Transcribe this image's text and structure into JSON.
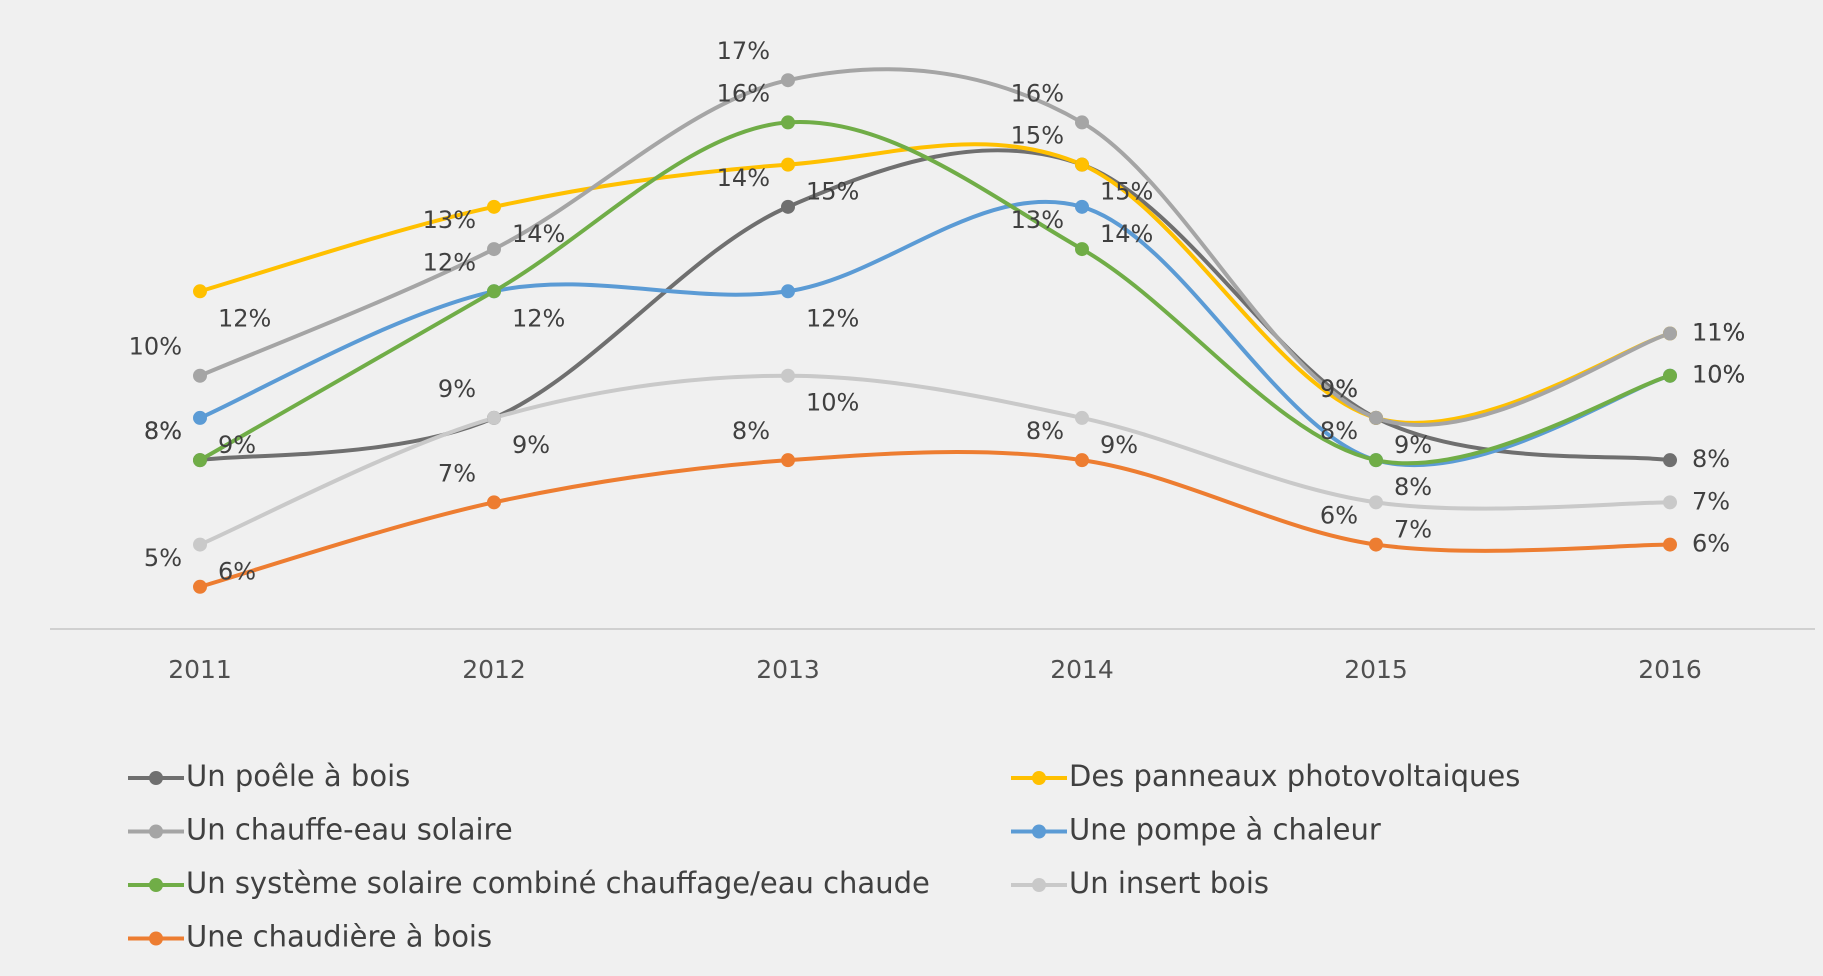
{
  "chart_data": {
    "type": "line",
    "categories": [
      "2011",
      "2012",
      "2013",
      "2014",
      "2015",
      "2016"
    ],
    "ylim": [
      4,
      18
    ],
    "series": [
      {
        "name": "Un poêle à bois",
        "color": "#6f6f6f",
        "values": [
          8,
          9,
          14,
          15,
          9,
          8
        ]
      },
      {
        "name": "Des panneaux photovoltaiques",
        "color": "#ffc000",
        "values": [
          12,
          14,
          15,
          15,
          9,
          11
        ]
      },
      {
        "name": "Un chauffe-eau solaire",
        "color": "#a5a5a5",
        "values": [
          10,
          13,
          17,
          16,
          9,
          11
        ]
      },
      {
        "name": "Une pompe à chaleur",
        "color": "#5b9bd5",
        "values": [
          9,
          12,
          12,
          14,
          8,
          10
        ]
      },
      {
        "name": "Un système solaire combiné chauffage/eau chaude",
        "color": "#70ad47",
        "values": [
          8,
          12,
          16,
          13,
          8,
          10
        ]
      },
      {
        "name": "Un insert bois",
        "color": "#c9c9c9",
        "values": [
          6,
          9,
          10,
          9,
          7,
          7
        ]
      },
      {
        "name": "Une chaudière à bois",
        "color": "#ed7d31",
        "values": [
          5,
          7,
          8,
          8,
          6,
          6
        ]
      }
    ],
    "value_suffix": "%"
  }
}
